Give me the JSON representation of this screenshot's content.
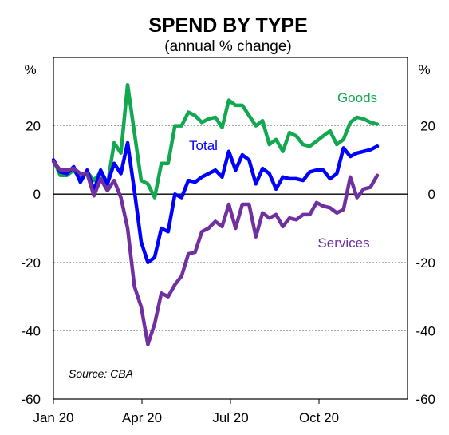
{
  "chart_data": {
    "type": "line",
    "title": "SPEND BY TYPE",
    "subtitle": "(annual % change)",
    "y_unit_left": "%",
    "y_unit_right": "%",
    "ylim": [
      -60,
      40
    ],
    "y_ticks": [
      20,
      0,
      -20,
      -40,
      -60
    ],
    "x_ticks": [
      "Jan 20",
      "Apr 20",
      "Jul 20",
      "Oct 20"
    ],
    "grid": "dashed horizontal at 20, -20, -40; solid zero line",
    "source": "Source: CBA",
    "series": [
      {
        "name": "Goods",
        "color": "#12a84f",
        "values": [
          10,
          5.5,
          5.5,
          7,
          4.5,
          6.5,
          4,
          6.5,
          2.5,
          15,
          12,
          32,
          18,
          4,
          3,
          -1,
          9,
          9,
          20,
          20,
          24,
          23,
          21,
          22,
          22.5,
          19.5,
          27.5,
          26,
          26,
          23,
          20,
          21.5,
          14.5,
          16,
          12.5,
          18,
          17,
          14.5,
          14,
          15.5,
          17,
          18.5,
          14.5,
          16,
          21,
          22.5,
          22,
          21,
          20.5
        ]
      },
      {
        "name": "Total",
        "color": "#0000ff",
        "values": [
          10,
          6.5,
          6,
          8,
          3.5,
          7,
          1,
          7,
          3,
          9,
          6,
          15,
          1,
          -14,
          -20,
          -18.5,
          -10,
          -11,
          0,
          -1,
          4,
          3.5,
          5,
          6,
          7,
          5,
          12.5,
          7,
          11.5,
          10,
          3,
          7.5,
          6,
          1.5,
          5,
          4.5,
          4.5,
          4,
          6.5,
          7,
          7,
          4.5,
          6,
          13.5,
          11,
          12,
          12.5,
          13,
          14
        ]
      },
      {
        "name": "Services",
        "color": "#7030a0",
        "values": [
          9.5,
          7,
          7,
          7.5,
          6,
          6,
          -0.5,
          4.5,
          1,
          4,
          -1,
          -10,
          -27,
          -33,
          -44,
          -38,
          -29,
          -30,
          -26.5,
          -24,
          -17.5,
          -17,
          -11,
          -10,
          -8,
          -9.5,
          -3,
          -10,
          -3,
          -3,
          -12.5,
          -5.5,
          -7,
          -6,
          -9.5,
          -7,
          -7.5,
          -6,
          -6,
          -2.5,
          -3.5,
          -4,
          -5.5,
          -4.5,
          5,
          -1,
          1.5,
          2,
          5.5
        ]
      }
    ]
  }
}
